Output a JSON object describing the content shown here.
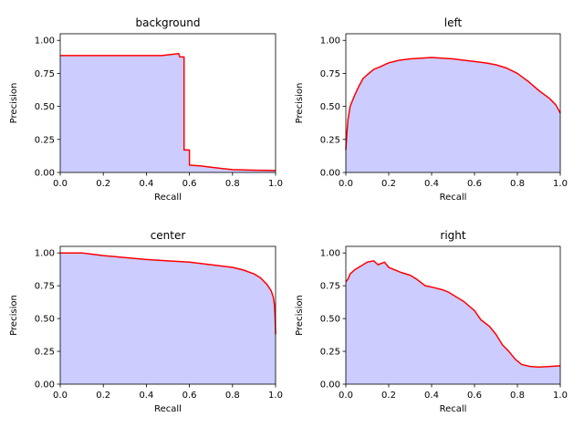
{
  "chart_data": [
    {
      "type": "area",
      "title": "background",
      "xlabel": "Recall",
      "ylabel": "Precision",
      "xlim": [
        0,
        1
      ],
      "ylim": [
        0,
        1.05
      ],
      "xticks": [
        "0.0",
        "0.2",
        "0.4",
        "0.6",
        "0.8",
        "1.0"
      ],
      "yticks": [
        "0.00",
        "0.25",
        "0.50",
        "0.75",
        "1.00"
      ],
      "series": [
        {
          "line_color": "#ff0000",
          "fill_color": "#ccccff",
          "points": [
            [
              0,
              0.885
            ],
            [
              0.47,
              0.885
            ],
            [
              0.5,
              0.89
            ],
            [
              0.55,
              0.9
            ],
            [
              0.555,
              0.875
            ],
            [
              0.575,
              0.875
            ],
            [
              0.575,
              0.17
            ],
            [
              0.6,
              0.17
            ],
            [
              0.6,
              0.055
            ],
            [
              0.65,
              0.05
            ],
            [
              0.7,
              0.04
            ],
            [
              0.75,
              0.03
            ],
            [
              0.8,
              0.022
            ],
            [
              0.9,
              0.017
            ],
            [
              1.0,
              0.015
            ]
          ]
        }
      ]
    },
    {
      "type": "area",
      "title": "left",
      "xlabel": "Recall",
      "ylabel": "Precision",
      "xlim": [
        0,
        1
      ],
      "ylim": [
        0,
        1.05
      ],
      "xticks": [
        "0.0",
        "0.2",
        "0.4",
        "0.6",
        "0.8",
        "1.0"
      ],
      "yticks": [
        "0.00",
        "0.25",
        "0.50",
        "0.75",
        "1.00"
      ],
      "series": [
        {
          "line_color": "#ff0000",
          "fill_color": "#ccccff",
          "points": [
            [
              0,
              0.17
            ],
            [
              0.005,
              0.3
            ],
            [
              0.01,
              0.4
            ],
            [
              0.02,
              0.5
            ],
            [
              0.04,
              0.58
            ],
            [
              0.06,
              0.65
            ],
            [
              0.08,
              0.71
            ],
            [
              0.1,
              0.74
            ],
            [
              0.13,
              0.78
            ],
            [
              0.16,
              0.8
            ],
            [
              0.2,
              0.83
            ],
            [
              0.25,
              0.85
            ],
            [
              0.3,
              0.86
            ],
            [
              0.35,
              0.865
            ],
            [
              0.4,
              0.87
            ],
            [
              0.45,
              0.865
            ],
            [
              0.5,
              0.86
            ],
            [
              0.55,
              0.85
            ],
            [
              0.6,
              0.84
            ],
            [
              0.65,
              0.83
            ],
            [
              0.7,
              0.815
            ],
            [
              0.75,
              0.79
            ],
            [
              0.8,
              0.75
            ],
            [
              0.85,
              0.69
            ],
            [
              0.9,
              0.62
            ],
            [
              0.95,
              0.56
            ],
            [
              0.98,
              0.51
            ],
            [
              1.0,
              0.45
            ]
          ]
        }
      ]
    },
    {
      "type": "area",
      "title": "center",
      "xlabel": "Recall",
      "ylabel": "Precision",
      "xlim": [
        0,
        1
      ],
      "ylim": [
        0,
        1.05
      ],
      "xticks": [
        "0.0",
        "0.2",
        "0.4",
        "0.6",
        "0.8",
        "1.0"
      ],
      "yticks": [
        "0.00",
        "0.25",
        "0.50",
        "0.75",
        "1.00"
      ],
      "series": [
        {
          "line_color": "#ff0000",
          "fill_color": "#ccccff",
          "points": [
            [
              0,
              1.0
            ],
            [
              0.1,
              1.0
            ],
            [
              0.15,
              0.99
            ],
            [
              0.2,
              0.98
            ],
            [
              0.3,
              0.965
            ],
            [
              0.4,
              0.95
            ],
            [
              0.5,
              0.94
            ],
            [
              0.6,
              0.93
            ],
            [
              0.7,
              0.91
            ],
            [
              0.8,
              0.89
            ],
            [
              0.85,
              0.87
            ],
            [
              0.9,
              0.84
            ],
            [
              0.93,
              0.81
            ],
            [
              0.96,
              0.76
            ],
            [
              0.98,
              0.71
            ],
            [
              0.99,
              0.66
            ],
            [
              0.995,
              0.6
            ],
            [
              0.998,
              0.5
            ],
            [
              1.0,
              0.38
            ]
          ]
        }
      ]
    },
    {
      "type": "area",
      "title": "right",
      "xlabel": "Recall",
      "ylabel": "Precision",
      "xlim": [
        0,
        1
      ],
      "ylim": [
        0,
        1.05
      ],
      "xticks": [
        "0.0",
        "0.2",
        "0.4",
        "0.6",
        "0.8",
        "1.0"
      ],
      "yticks": [
        "0.00",
        "0.25",
        "0.50",
        "0.75",
        "1.00"
      ],
      "series": [
        {
          "line_color": "#ff0000",
          "fill_color": "#ccccff",
          "points": [
            [
              0,
              0.78
            ],
            [
              0.01,
              0.8
            ],
            [
              0.02,
              0.84
            ],
            [
              0.04,
              0.87
            ],
            [
              0.06,
              0.89
            ],
            [
              0.08,
              0.91
            ],
            [
              0.1,
              0.93
            ],
            [
              0.13,
              0.94
            ],
            [
              0.15,
              0.91
            ],
            [
              0.18,
              0.93
            ],
            [
              0.2,
              0.89
            ],
            [
              0.23,
              0.87
            ],
            [
              0.26,
              0.85
            ],
            [
              0.3,
              0.83
            ],
            [
              0.33,
              0.8
            ],
            [
              0.37,
              0.75
            ],
            [
              0.4,
              0.74
            ],
            [
              0.45,
              0.72
            ],
            [
              0.48,
              0.7
            ],
            [
              0.52,
              0.66
            ],
            [
              0.55,
              0.63
            ],
            [
              0.6,
              0.56
            ],
            [
              0.63,
              0.49
            ],
            [
              0.67,
              0.44
            ],
            [
              0.7,
              0.38
            ],
            [
              0.73,
              0.3
            ],
            [
              0.76,
              0.25
            ],
            [
              0.79,
              0.19
            ],
            [
              0.82,
              0.15
            ],
            [
              0.86,
              0.135
            ],
            [
              0.9,
              0.13
            ],
            [
              0.95,
              0.135
            ],
            [
              1.0,
              0.14
            ]
          ]
        }
      ]
    }
  ]
}
